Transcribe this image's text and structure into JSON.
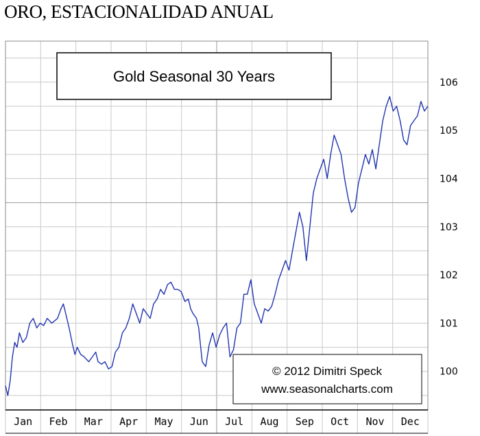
{
  "page": {
    "heading": "ORO, ESTACIONALIDAD ANUAL"
  },
  "chart_data": {
    "type": "line",
    "title": "Gold Seasonal 30 Years",
    "credit_line1": "© 2012  Dimitri Speck",
    "credit_line2": "www.seasonalcharts.com",
    "xlabel": "",
    "ylabel": "",
    "months": [
      "Jan",
      "Feb",
      "Mar",
      "Apr",
      "May",
      "Jun",
      "Jul",
      "Aug",
      "Sep",
      "Oct",
      "Nov",
      "Dec"
    ],
    "y_ticks": [
      100,
      101,
      102,
      103,
      104,
      105,
      106
    ],
    "ylim": [
      99.2,
      106.85
    ],
    "xlim": [
      0,
      365
    ],
    "grid": true,
    "line_color": "#1f33b0",
    "series": [
      {
        "x": [
          0,
          2,
          4,
          6,
          8,
          10,
          12,
          15,
          18,
          21,
          24,
          27,
          30,
          33,
          36,
          40,
          45,
          48,
          50,
          52,
          55,
          58,
          60,
          62,
          65,
          68,
          72,
          75,
          78,
          80,
          83,
          86,
          89,
          92,
          95,
          98,
          101,
          104,
          107,
          110,
          113,
          116,
          119,
          122,
          125,
          128,
          131,
          134,
          137,
          140,
          143,
          146,
          149,
          152,
          155,
          158,
          160,
          162,
          165,
          167,
          170,
          173,
          176,
          179,
          182,
          185,
          188,
          191,
          194,
          197,
          200,
          203,
          206,
          209,
          212,
          215,
          218,
          221,
          224,
          227,
          230,
          233,
          236,
          239,
          242,
          245,
          248,
          251,
          254,
          257,
          260,
          263,
          266,
          269,
          272,
          275,
          278,
          281,
          284,
          287,
          290,
          293,
          296,
          299,
          302,
          305,
          308,
          311,
          314,
          317,
          320,
          323,
          326,
          329,
          332,
          335,
          338,
          341,
          344,
          347,
          350,
          353,
          356,
          359,
          362,
          365
        ],
        "values": [
          99.7,
          99.5,
          99.8,
          100.3,
          100.6,
          100.5,
          100.8,
          100.6,
          100.7,
          101.0,
          101.1,
          100.9,
          101.0,
          100.95,
          101.1,
          101.0,
          101.1,
          101.3,
          101.4,
          101.2,
          100.9,
          100.55,
          100.35,
          100.5,
          100.35,
          100.3,
          100.2,
          100.3,
          100.4,
          100.2,
          100.15,
          100.2,
          100.05,
          100.1,
          100.4,
          100.5,
          100.8,
          100.9,
          101.1,
          101.4,
          101.2,
          101.0,
          101.3,
          101.2,
          101.1,
          101.4,
          101.5,
          101.7,
          101.6,
          101.8,
          101.85,
          101.7,
          101.7,
          101.65,
          101.45,
          101.5,
          101.3,
          101.2,
          101.1,
          100.9,
          100.2,
          100.1,
          100.55,
          100.8,
          100.5,
          100.75,
          100.9,
          101.0,
          100.3,
          100.45,
          100.9,
          101.0,
          101.6,
          101.6,
          101.9,
          101.4,
          101.2,
          101.0,
          101.3,
          101.25,
          101.35,
          101.6,
          101.9,
          102.1,
          102.3,
          102.1,
          102.5,
          102.9,
          103.3,
          103.0,
          102.3,
          103.0,
          103.7,
          104.0,
          104.2,
          104.4,
          104.0,
          104.5,
          104.9,
          104.7,
          104.5,
          104.0,
          103.6,
          103.3,
          103.4,
          103.9,
          104.2,
          104.5,
          104.3,
          104.6,
          104.2,
          104.7,
          105.2,
          105.5,
          105.7,
          105.4,
          105.5,
          105.2,
          104.8,
          104.7,
          105.1,
          105.2,
          105.3,
          105.6,
          105.4,
          105.5
        ]
      }
    ]
  }
}
